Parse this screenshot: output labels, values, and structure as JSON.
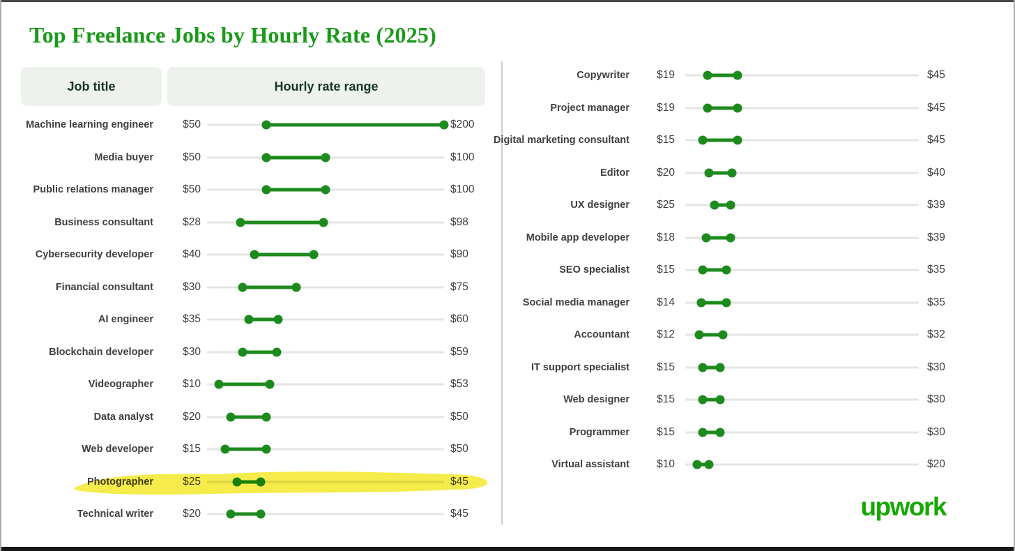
{
  "title": "Top Freelance Jobs by Hourly Rate (2025)",
  "table_headers": [
    "Job title",
    "Hourly rate range"
  ],
  "branding": {
    "logo_text": "upwork"
  },
  "currency_prefix": "$",
  "colors": {
    "title_green": "#1a9a1a",
    "green": "#1d8a1d",
    "brand_green": "#14a800",
    "header_bg": "#eef2ec",
    "header_text": "#14352c",
    "track": "#e4e4e4",
    "label": "#3f3f3f",
    "highlight": "#f3e622"
  },
  "chart_data": {
    "type": "dumbbell-range",
    "title": "Top Freelance Jobs by Hourly Rate (2025)",
    "unit": "USD per hour",
    "axis_range": [
      0,
      200
    ],
    "grid": false,
    "highlighted_row": "Photographer",
    "panels": [
      {
        "name": "left",
        "rows": [
          {
            "label": "Machine learning engineer",
            "min": 50,
            "max": 200
          },
          {
            "label": "Media buyer",
            "min": 50,
            "max": 100
          },
          {
            "label": "Public relations manager",
            "min": 50,
            "max": 100
          },
          {
            "label": "Business consultant",
            "min": 28,
            "max": 98
          },
          {
            "label": "Cybersecurity developer",
            "min": 40,
            "max": 90
          },
          {
            "label": "Financial consultant",
            "min": 30,
            "max": 75
          },
          {
            "label": "AI engineer",
            "min": 35,
            "max": 60
          },
          {
            "label": "Blockchain developer",
            "min": 30,
            "max": 59
          },
          {
            "label": "Videographer",
            "min": 10,
            "max": 53
          },
          {
            "label": "Data analyst",
            "min": 20,
            "max": 50
          },
          {
            "label": "Web developer",
            "min": 15,
            "max": 50
          },
          {
            "label": "Photographer",
            "min": 25,
            "max": 45,
            "highlighted": true
          },
          {
            "label": "Technical writer",
            "min": 20,
            "max": 45
          }
        ]
      },
      {
        "name": "right",
        "rows": [
          {
            "label": "Copywriter",
            "min": 19,
            "max": 45
          },
          {
            "label": "Project manager",
            "min": 19,
            "max": 45
          },
          {
            "label": "Digital marketing consultant",
            "min": 15,
            "max": 45
          },
          {
            "label": "Editor",
            "min": 20,
            "max": 40
          },
          {
            "label": "UX designer",
            "min": 25,
            "max": 39
          },
          {
            "label": "Mobile app developer",
            "min": 18,
            "max": 39
          },
          {
            "label": "SEO specialist",
            "min": 15,
            "max": 35
          },
          {
            "label": "Social media manager",
            "min": 14,
            "max": 35
          },
          {
            "label": "Accountant",
            "min": 12,
            "max": 32
          },
          {
            "label": "IT support specialist",
            "min": 15,
            "max": 30
          },
          {
            "label": "Web designer",
            "min": 15,
            "max": 30
          },
          {
            "label": "Programmer",
            "min": 15,
            "max": 30
          },
          {
            "label": "Virtual assistant",
            "min": 10,
            "max": 20
          }
        ]
      }
    ]
  }
}
